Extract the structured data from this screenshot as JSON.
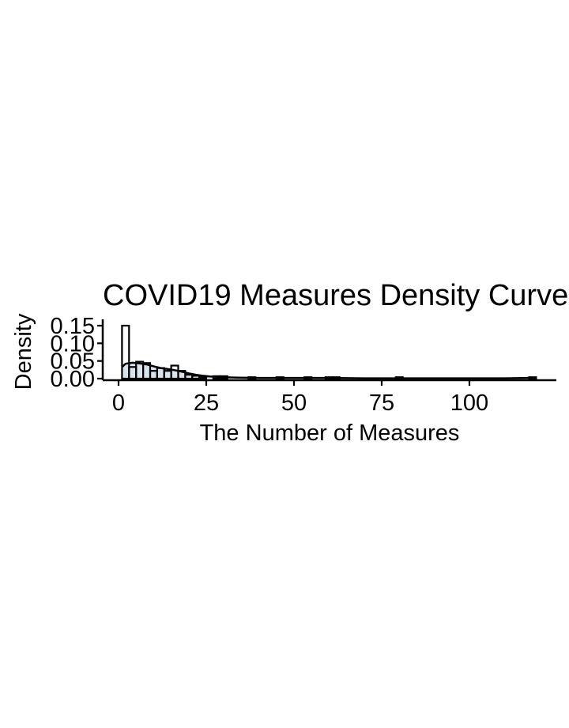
{
  "chart_data": {
    "type": "histogram",
    "title": "COVID19 Measures Density Curve",
    "xlabel": "The Number of Measures",
    "ylabel": "Density",
    "xlim": [
      -4,
      125
    ],
    "ylim": [
      0,
      0.16
    ],
    "x_ticks": [
      0,
      25,
      50,
      75,
      100
    ],
    "x_tick_labels": [
      "0",
      "25",
      "50",
      "75",
      "100"
    ],
    "y_ticks": [
      0,
      0.05,
      0.1,
      0.15
    ],
    "y_tick_labels": [
      "0.00",
      "0.05",
      "0.10",
      "0.15"
    ],
    "grid": false,
    "histogram": {
      "bin_width": 2,
      "bins": [
        {
          "x0": 1,
          "x1": 3,
          "density": 0.15
        },
        {
          "x0": 3,
          "x1": 5,
          "density": 0.033
        },
        {
          "x0": 5,
          "x1": 7,
          "density": 0.048
        },
        {
          "x0": 7,
          "x1": 9,
          "density": 0.044
        },
        {
          "x0": 9,
          "x1": 11,
          "density": 0.022
        },
        {
          "x0": 11,
          "x1": 13,
          "density": 0.03
        },
        {
          "x0": 13,
          "x1": 15,
          "density": 0.022
        },
        {
          "x0": 15,
          "x1": 17,
          "density": 0.037
        },
        {
          "x0": 17,
          "x1": 19,
          "density": 0.022
        },
        {
          "x0": 19,
          "x1": 21,
          "density": 0.011
        },
        {
          "x0": 21,
          "x1": 23,
          "density": 0.008
        },
        {
          "x0": 23,
          "x1": 25,
          "density": 0.004
        },
        {
          "x0": 27,
          "x1": 29,
          "density": 0.007
        },
        {
          "x0": 29,
          "x1": 31,
          "density": 0.007
        },
        {
          "x0": 37,
          "x1": 39,
          "density": 0.004
        },
        {
          "x0": 45,
          "x1": 47,
          "density": 0.004
        },
        {
          "x0": 53,
          "x1": 55,
          "density": 0.004
        },
        {
          "x0": 59,
          "x1": 61,
          "density": 0.004
        },
        {
          "x0": 61,
          "x1": 63,
          "density": 0.004
        },
        {
          "x0": 79,
          "x1": 81,
          "density": 0.004
        },
        {
          "x0": 117,
          "x1": 119,
          "density": 0.004
        }
      ]
    },
    "density_curve": {
      "x": [
        1,
        2,
        4,
        6,
        8,
        10,
        12,
        14,
        16,
        18,
        20,
        22,
        24,
        26,
        28,
        30,
        34,
        40,
        50,
        60,
        70,
        80,
        90,
        100,
        110,
        117
      ],
      "y": [
        0.033,
        0.042,
        0.045,
        0.043,
        0.04,
        0.035,
        0.03,
        0.027,
        0.024,
        0.02,
        0.015,
        0.011,
        0.008,
        0.006,
        0.005,
        0.004,
        0.003,
        0.002,
        0.002,
        0.002,
        0.001,
        0.001,
        0.001,
        0.001,
        0.001,
        0.002
      ]
    },
    "colors": {
      "density_fill": "#d6e4ee",
      "bar_fill": "#ffffff",
      "stroke": "#000000"
    }
  }
}
